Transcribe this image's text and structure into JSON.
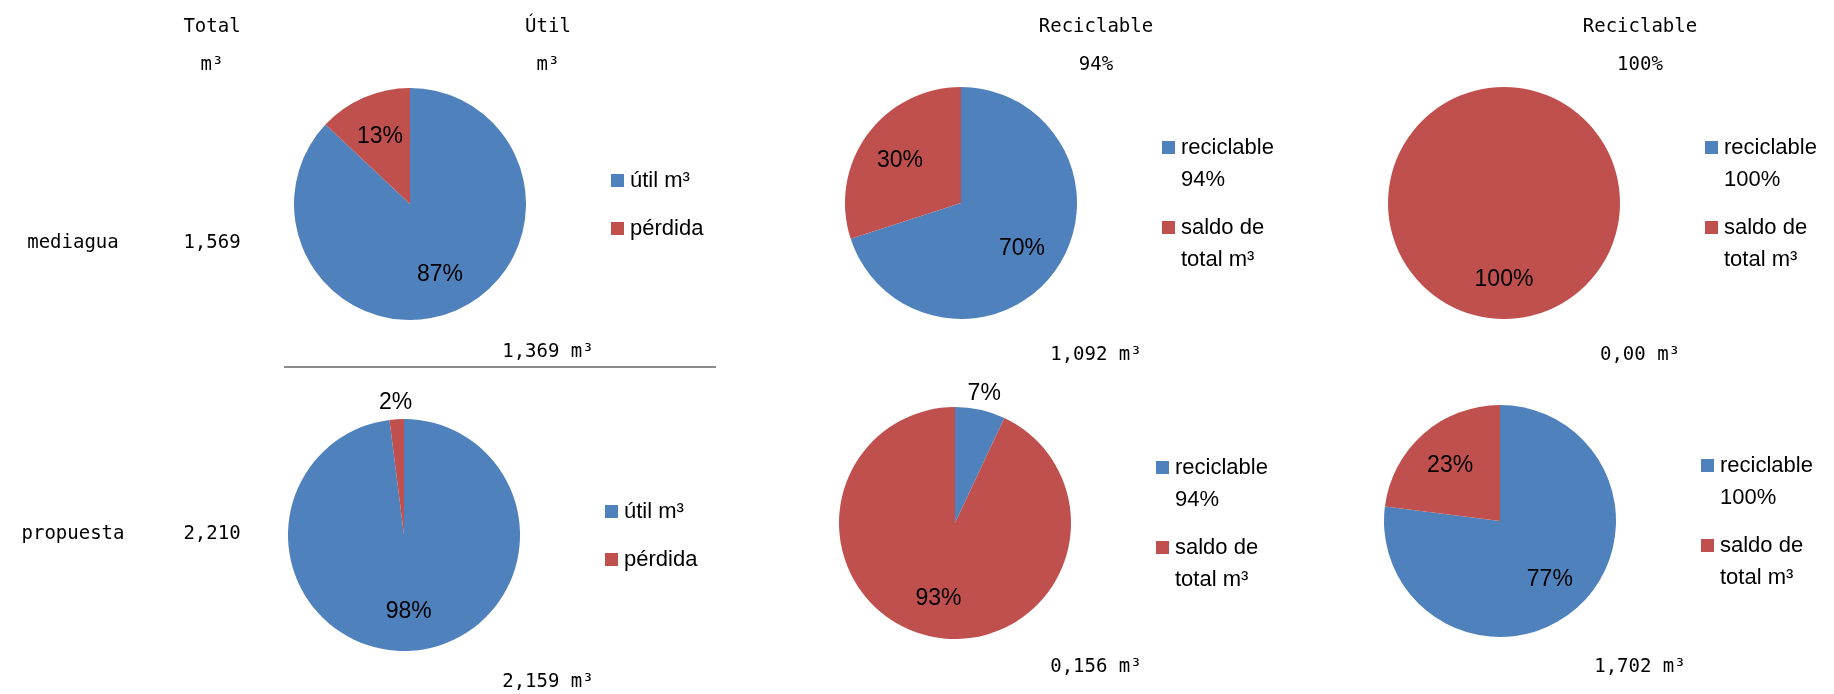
{
  "chart_data": [
    {
      "type": "other",
      "title": "Total m³",
      "annotations": [
        "mediagua",
        "1,569",
        "propuesta",
        "2,210"
      ]
    },
    {
      "type": "pie",
      "title": "Útil m³",
      "categories": [
        "útil m³",
        "pérdida"
      ],
      "values": [
        87,
        13
      ],
      "colors": [
        "#4f81bd",
        "#c0504d"
      ],
      "value_labels": [
        "87%",
        "13%"
      ],
      "legend": "right",
      "annotations": [
        "1,369 m³"
      ]
    },
    {
      "type": "pie",
      "title": "Reciclable 94%",
      "categories": [
        "reciclable 94%",
        "saldo de total m³"
      ],
      "values": [
        70,
        30
      ],
      "colors": [
        "#4f81bd",
        "#c0504d"
      ],
      "value_labels": [
        "70%",
        "30%"
      ],
      "legend": "right",
      "annotations": [
        "1,092 m³"
      ]
    },
    {
      "type": "pie",
      "title": "Reciclable 100%",
      "categories": [
        "reciclable 100%",
        "saldo de total m³"
      ],
      "values": [
        0,
        100
      ],
      "colors": [
        "#4f81bd",
        "#c0504d"
      ],
      "value_labels": [
        null,
        "100%"
      ],
      "legend": "right",
      "annotations": [
        "0,00 m³"
      ]
    },
    {
      "type": "pie",
      "categories": [
        "útil m³",
        "pérdida"
      ],
      "values": [
        98,
        2
      ],
      "colors": [
        "#4f81bd",
        "#c0504d"
      ],
      "value_labels": [
        "98%",
        "2%"
      ],
      "legend": "right",
      "annotations": [
        "2,159 m³"
      ]
    },
    {
      "type": "pie",
      "categories": [
        "reciclable 94%",
        "saldo de total m³"
      ],
      "values": [
        7,
        93
      ],
      "colors": [
        "#4f81bd",
        "#c0504d"
      ],
      "value_labels": [
        "7%",
        "93%"
      ],
      "legend": "right",
      "annotations": [
        "0,156 m³"
      ]
    },
    {
      "type": "pie",
      "categories": [
        "reciclable 100%",
        "saldo de total m³"
      ],
      "values": [
        77,
        23
      ],
      "colors": [
        "#4f81bd",
        "#c0504d"
      ],
      "value_labels": [
        "77%",
        "23%"
      ],
      "legend": "right",
      "annotations": [
        "1,702 m³"
      ]
    }
  ]
}
